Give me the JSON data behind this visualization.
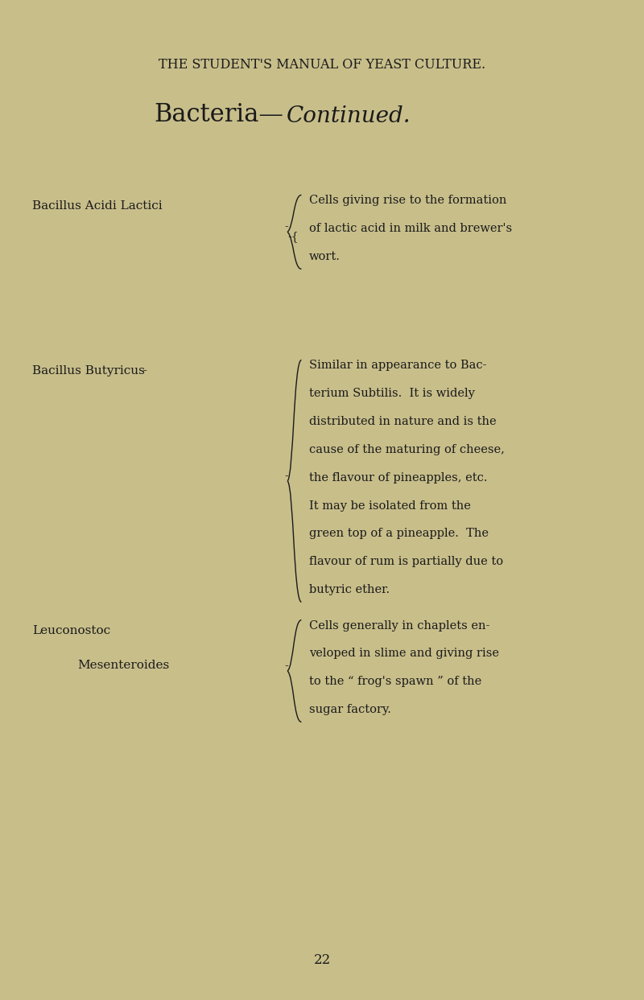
{
  "bg_color": "#c8be8a",
  "text_color": "#1a1a1a",
  "page_header": "THE STUDENT'S MANUAL OF YEAST CULTURE.",
  "page_title_roman": "Bacteria—",
  "page_title_italic": "Continued.",
  "page_number": "22",
  "entries": [
    {
      "name_line1": "Bacillus Acidi Lactici",
      "name_line2": null,
      "description": "Cells giving rise to the formation\nof lactic acid in milk and brewer's\nwort."
    },
    {
      "name_line1": "Bacillus Butyricus",
      "name_line2": null,
      "description": "Similar in appearance to Bac-\nterium Subtilis.  It is widely\ndistributed in nature and is the\ncause of the maturing of cheese,\nthe flavour of pineapples, etc.\nIt may be isolated from the\ngreen top of a pineapple.  The\nflavour of rum is partially due to\nbutyric ether."
    },
    {
      "name_line1": "Leuconostoc",
      "name_line2": "Mesenteroides",
      "description": "Cells generally in chaplets en-\nveloped in slime and giving rise\nto the “ frog's spawn ” of the\nsugar factory."
    }
  ]
}
